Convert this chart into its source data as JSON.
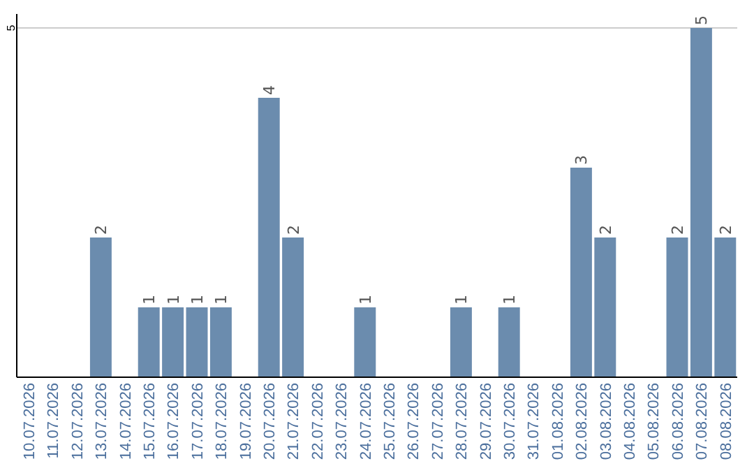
{
  "chart_data": {
    "type": "bar",
    "categories": [
      "10.07.2026",
      "11.07.2026",
      "12.07.2026",
      "13.07.2026",
      "14.07.2026",
      "15.07.2026",
      "16.07.2026",
      "17.07.2026",
      "18.07.2026",
      "19.07.2026",
      "20.07.2026",
      "21.07.2026",
      "22.07.2026",
      "23.07.2026",
      "24.07.2026",
      "25.07.2026",
      "26.07.2026",
      "27.07.2026",
      "28.07.2026",
      "29.07.2026",
      "30.07.2026",
      "31.07.2026",
      "01.08.2026",
      "02.08.2026",
      "03.08.2026",
      "04.08.2026",
      "05.08.2026",
      "06.08.2026",
      "07.08.2026",
      "08.08.2026"
    ],
    "values": [
      0,
      0,
      0,
      2,
      0,
      1,
      1,
      1,
      1,
      0,
      4,
      2,
      0,
      0,
      1,
      0,
      0,
      0,
      1,
      0,
      1,
      0,
      0,
      3,
      2,
      0,
      0,
      2,
      5,
      2
    ],
    "value_labels": [
      null,
      null,
      null,
      "2",
      null,
      "1",
      "1",
      "1",
      "1",
      null,
      "4",
      "2",
      null,
      null,
      "1",
      null,
      null,
      null,
      "1",
      null,
      "1",
      null,
      null,
      "3",
      "2",
      null,
      null,
      "2",
      "5",
      "2"
    ],
    "color": "#6b8cae",
    "ylim": [
      0,
      5.2
    ],
    "yticks": [
      5
    ],
    "grid": "y"
  }
}
